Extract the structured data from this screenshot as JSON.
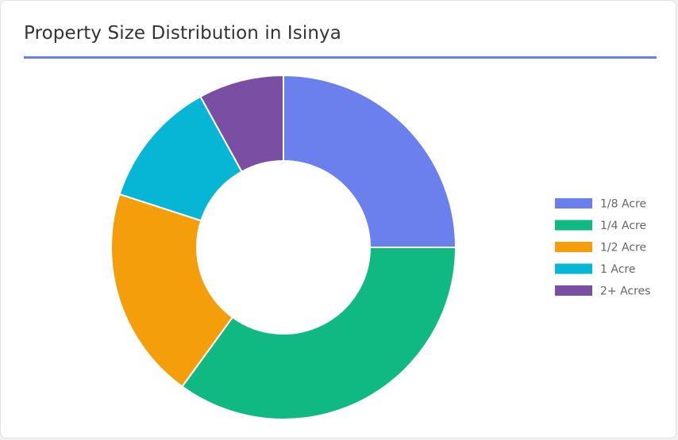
{
  "header": {
    "title": "Property Size Distribution in Isinya"
  },
  "colors": {
    "accent_rule": "#6b7fe6"
  },
  "chart_data": {
    "type": "pie",
    "variant": "doughnut",
    "title": "Property Size Distribution in Isinya",
    "legend_position": "right",
    "slices": [
      {
        "label": "1/8 Acre",
        "value": 25,
        "color": "#6b80ec"
      },
      {
        "label": "1/4 Acre",
        "value": 35,
        "color": "#10b981"
      },
      {
        "label": "1/2 Acre",
        "value": 20,
        "color": "#f59e0b"
      },
      {
        "label": "1 Acre",
        "value": 12,
        "color": "#06b6d4"
      },
      {
        "label": "2+ Acres",
        "value": 8,
        "color": "#7a4ea3"
      }
    ]
  }
}
